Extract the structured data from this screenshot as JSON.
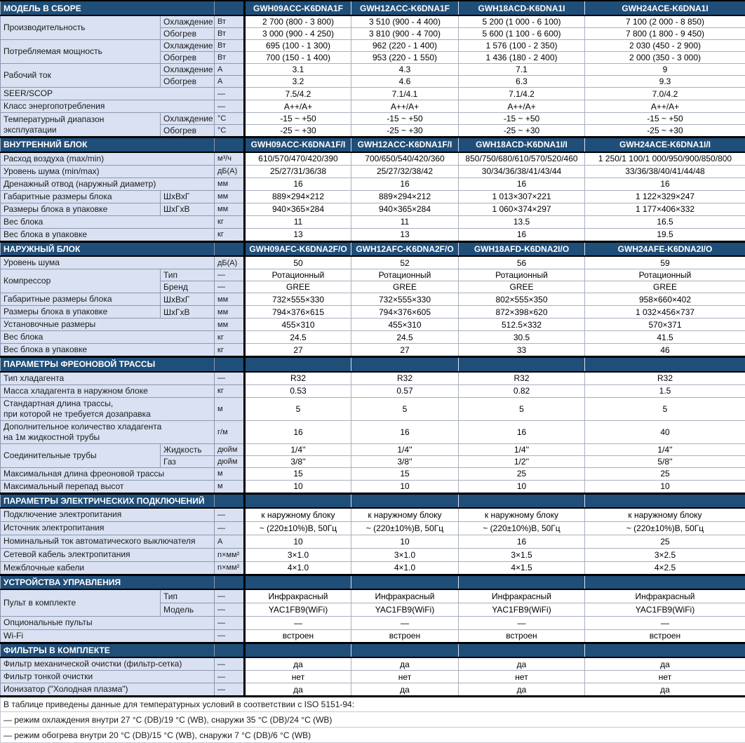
{
  "colors": {
    "header_bg": "#1F4E79",
    "header_text": "#FFFFFF",
    "label_bg": "#D9E1F2",
    "divider": "#000000"
  },
  "table": {
    "sections": [
      {
        "title": "МОДЕЛЬ В СБОРЕ",
        "models": [
          "GWH09ACC-K6DNA1F",
          "GWH12ACC-K6DNA1F",
          "GWH18ACD-K6DNA1I",
          "GWH24ACE-K6DNA1I"
        ],
        "rows": [
          {
            "label": "Производительность",
            "rowspan": 2,
            "sub": "Охлаждение",
            "unit": "Вт",
            "values": [
              "2 700 (800 - 3 800)",
              "3 510 (900 - 4 400)",
              "5 200 (1 000 - 6 100)",
              "7 100 (2 000 - 8 850)"
            ]
          },
          {
            "sub": "Обогрев",
            "unit": "Вт",
            "values": [
              "3 000 (900 - 4 250)",
              "3 810 (900 - 4 700)",
              "5 600 (1 100 - 6 600)",
              "7 800 (1 800 - 9 450)"
            ]
          },
          {
            "label": "Потребляемая мощность",
            "rowspan": 2,
            "sub": "Охлаждение",
            "unit": "Вт",
            "values": [
              "695 (100 - 1 300)",
              "962 (220 - 1 400)",
              "1 576 (100 - 2 350)",
              "2 030 (450 - 2 900)"
            ]
          },
          {
            "sub": "Обогрев",
            "unit": "Вт",
            "values": [
              "700 (150 - 1 400)",
              "953 (220 - 1 550)",
              "1 436 (180 - 2 400)",
              "2 000 (350 - 3 000)"
            ]
          },
          {
            "label": "Рабочий ток",
            "rowspan": 2,
            "sub": "Охлаждение",
            "unit": "А",
            "values": [
              "3.1",
              "4.3",
              "7.1",
              "9"
            ]
          },
          {
            "sub": "Обогрев",
            "unit": "А",
            "values": [
              "3.2",
              "4.6",
              "6.3",
              "9.3"
            ]
          },
          {
            "label": "SEER/SCOP",
            "unit": "—",
            "values": [
              "7.5/4.2",
              "7.1/4.1",
              "7.1/4.2",
              "7.0/4.2"
            ]
          },
          {
            "label": "Класс энергопотребления",
            "unit": "—",
            "values": [
              "A++/A+",
              "A++/A+",
              "A++/A+",
              "A++/A+"
            ]
          },
          {
            "label": "Температурный диапазон\nэксплуатации",
            "rowspan": 2,
            "sub": "Охлаждение",
            "unit": "°С",
            "values": [
              "-15 ~ +50",
              "-15 ~ +50",
              "-15 ~ +50",
              "-15 ~ +50"
            ]
          },
          {
            "sub": "Обогрев",
            "unit": "°С",
            "values": [
              "-25 ~ +30",
              "-25 ~ +30",
              "-25 ~ +30",
              "-25 ~ +30"
            ]
          }
        ]
      },
      {
        "title": "ВНУТРЕННИЙ БЛОК",
        "models": [
          "GWH09ACC-K6DNA1F/I",
          "GWH12ACC-K6DNA1F/I",
          "GWH18ACD-K6DNA1I/I",
          "GWH24ACE-K6DNA1I/I"
        ],
        "rows": [
          {
            "label": "Расход воздуха (max/min)",
            "unit": "м³/ч",
            "values": [
              "610/570/470/420/390",
              "700/650/540/420/360",
              "850/750/680/610/570/520/460",
              "1 250/1 100/1 000/950/900/850/800"
            ]
          },
          {
            "label": "Уровень шума (min/max)",
            "unit": "дБ(А)",
            "values": [
              "25/27/31/36/38",
              "25/27/32/38/42",
              "30/34/36/38/41/43/44",
              "33/36/38/40/41/44/48"
            ]
          },
          {
            "label": "Дренажный отвод (наружный диаметр)",
            "unit": "мм",
            "values": [
              "16",
              "16",
              "16",
              "16"
            ]
          },
          {
            "label": "Габаритные размеры блока",
            "sub": "ШхВхГ",
            "unit": "мм",
            "values": [
              "889×294×212",
              "889×294×212",
              "1 013×307×221",
              "1 122×329×247"
            ]
          },
          {
            "label": "Размеры блока в упаковке",
            "sub": "ШхГхВ",
            "unit": "мм",
            "values": [
              "940×365×284",
              "940×365×284",
              "1 060×374×297",
              "1 177×406×332"
            ]
          },
          {
            "label": "Вес блока",
            "unit": "кг",
            "values": [
              "11",
              "11",
              "13.5",
              "16.5"
            ]
          },
          {
            "label": "Вес блока в упаковке",
            "unit": "кг",
            "values": [
              "13",
              "13",
              "16",
              "19.5"
            ]
          }
        ]
      },
      {
        "title": "НАРУЖНЫЙ БЛОК",
        "models": [
          "GWH09AFC-K6DNA2F/O",
          "GWH12AFC-K6DNA2F/O",
          "GWH18AFD-K6DNA2I/O",
          "GWH24AFE-K6DNA2I/O"
        ],
        "rows": [
          {
            "label": "Уровень шума",
            "unit": "дБ(А)",
            "values": [
              "50",
              "52",
              "56",
              "59"
            ]
          },
          {
            "label": "Компрессор",
            "rowspan": 2,
            "sub": "Тип",
            "unit": "—",
            "values": [
              "Ротационный",
              "Ротационный",
              "Ротационный",
              "Ротационный"
            ]
          },
          {
            "sub": "Бренд",
            "unit": "—",
            "values": [
              "GREE",
              "GREE",
              "GREE",
              "GREE"
            ]
          },
          {
            "label": "Габаритные размеры блока",
            "sub": "ШхВхГ",
            "unit": "мм",
            "values": [
              "732×555×330",
              "732×555×330",
              "802×555×350",
              "958×660×402"
            ]
          },
          {
            "label": "Размеры блока в упаковке",
            "sub": "ШхГхВ",
            "unit": "мм",
            "values": [
              "794×376×615",
              "794×376×605",
              "872×398×620",
              "1 032×456×737"
            ]
          },
          {
            "label": "Установочные размеры",
            "unit": "мм",
            "values": [
              "455×310",
              "455×310",
              "512.5×332",
              "570×371"
            ]
          },
          {
            "label": "Вес блока",
            "unit": "кг",
            "values": [
              "24.5",
              "24.5",
              "30.5",
              "41.5"
            ]
          },
          {
            "label": "Вес блока в упаковке",
            "unit": "кг",
            "values": [
              "27",
              "27",
              "33",
              "46"
            ]
          }
        ]
      },
      {
        "title": "ПАРАМЕТРЫ ФРЕОНОВОЙ ТРАССЫ",
        "models": null,
        "rows": [
          {
            "label": "Тип хладагента",
            "unit": "—",
            "values": [
              "R32",
              "R32",
              "R32",
              "R32"
            ]
          },
          {
            "label": "Масса хладагента в наружном блоке",
            "unit": "кг",
            "values": [
              "0.53",
              "0.57",
              "0.82",
              "1.5"
            ]
          },
          {
            "label": "Стандартная длина трассы,\nпри которой не требуется дозаправка",
            "tall": true,
            "unit": "м",
            "values": [
              "5",
              "5",
              "5",
              "5"
            ]
          },
          {
            "label": "Дополнительное количество хладагента\nна 1м жидкостной трубы",
            "tall": true,
            "unit": "г/м",
            "values": [
              "16",
              "16",
              "16",
              "40"
            ]
          },
          {
            "label": "Соединительные трубы",
            "rowspan": 2,
            "sub": "Жидкость",
            "unit": "дюйм",
            "values": [
              "1/4''",
              "1/4''",
              "1/4''",
              "1/4''"
            ]
          },
          {
            "sub": "Газ",
            "unit": "дюйм",
            "values": [
              "3/8''",
              "3/8''",
              "1/2''",
              "5/8''"
            ]
          },
          {
            "label": "Максимальная длина фреоновой трассы",
            "unit": "м",
            "values": [
              "15",
              "15",
              "25",
              "25"
            ]
          },
          {
            "label": "Максимальный перепад высот",
            "unit": "м",
            "values": [
              "10",
              "10",
              "10",
              "10"
            ]
          }
        ]
      },
      {
        "title": "ПАРАМЕТРЫ ЭЛЕКТРИЧЕСКИХ ПОДКЛЮЧЕНИЙ",
        "models": null,
        "rows": [
          {
            "label": "Подключение электропитания",
            "unit": "—",
            "values": [
              "к наружному блоку",
              "к наружному блоку",
              "к наружному блоку",
              "к наружному блоку"
            ]
          },
          {
            "label": "Источник электропитания",
            "unit": "—",
            "values": [
              "~ (220±10%)В, 50Гц",
              "~ (220±10%)В, 50Гц",
              "~ (220±10%)В, 50Гц",
              "~ (220±10%)В, 50Гц"
            ]
          },
          {
            "label": "Номинальный ток автоматического выключателя",
            "unit": "А",
            "values": [
              "10",
              "10",
              "16",
              "25"
            ]
          },
          {
            "label": "Сетевой кабель электропитания",
            "unit": "n×мм²",
            "values": [
              "3×1.0",
              "3×1.0",
              "3×1.5",
              "3×2.5"
            ]
          },
          {
            "label": "Межблочные кабели",
            "unit": "n×мм²",
            "values": [
              "4×1.0",
              "4×1.0",
              "4×1.5",
              "4×2.5"
            ]
          }
        ]
      },
      {
        "title": "УСТРОЙСТВА УПРАВЛЕНИЯ",
        "models": null,
        "rows": [
          {
            "label": "Пульт в комплекте",
            "rowspan": 2,
            "sub": "Тип",
            "unit": "—",
            "values": [
              "Инфракрасный",
              "Инфракрасный",
              "Инфракрасный",
              "Инфракрасный"
            ]
          },
          {
            "sub": "Модель",
            "unit": "—",
            "values": [
              "YAC1FB9(WiFi)",
              "YAC1FB9(WiFi)",
              "YAC1FB9(WiFi)",
              "YAC1FB9(WiFi)"
            ]
          },
          {
            "label": "Опциональные пульты",
            "unit": "—",
            "values": [
              "—",
              "—",
              "—",
              "—"
            ]
          },
          {
            "label": "Wi-Fi",
            "unit": "—",
            "values": [
              "встроен",
              "встроен",
              "встроен",
              "встроен"
            ]
          }
        ]
      },
      {
        "title": "ФИЛЬТРЫ В КОМПЛЕКТЕ",
        "models": null,
        "rows": [
          {
            "label": "Фильтр механической очистки (фильтр-сетка)",
            "unit": "—",
            "values": [
              "да",
              "да",
              "да",
              "да"
            ]
          },
          {
            "label": "Фильтр тонкой очистки",
            "unit": "—",
            "values": [
              "нет",
              "нет",
              "нет",
              "нет"
            ]
          },
          {
            "label": "Ионизатор (\"Холодная плазма\")",
            "unit": "—",
            "values": [
              "да",
              "да",
              "да",
              "да"
            ]
          }
        ]
      }
    ],
    "footer": [
      "В таблице приведены данные для температурных условий в соответствии с ISO 5151-94:",
      "— режим охлаждения внутри 27 °C (DB)/19 °C (WB), снаружи 35 °C (DB)/24 °C (WB)",
      "— режим обогрева внутри 20 °C (DB)/15 °C (WB), снаружи 7 °C (DB)/6 °C (WB)"
    ]
  }
}
